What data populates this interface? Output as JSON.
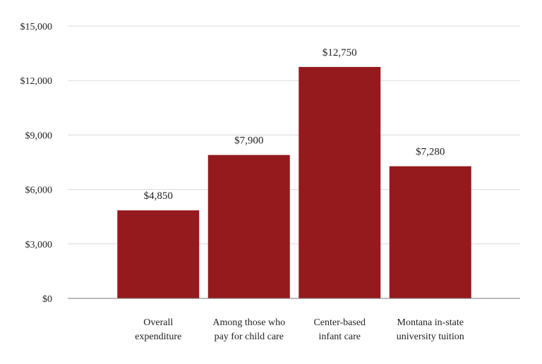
{
  "chart_data": {
    "type": "bar",
    "categories": [
      [
        "Overall",
        "expenditure"
      ],
      [
        "Among those who",
        "pay for child care"
      ],
      [
        "Center-based",
        "infant care"
      ],
      [
        "Montana in-state",
        "university tuition"
      ]
    ],
    "values": [
      4850,
      7900,
      12750,
      7280
    ],
    "data_labels": [
      "$4,850",
      "$7,900",
      "$12,750",
      "$7,280"
    ],
    "y_ticks": [
      0,
      3000,
      6000,
      9000,
      12000,
      15000
    ],
    "y_tick_labels": [
      "$0",
      "$3,000",
      "$6,000",
      "$9,000",
      "$12,000",
      "$15,000"
    ],
    "ylim": [
      0,
      15000
    ],
    "grid": true,
    "bar_color": "#951a1e"
  }
}
